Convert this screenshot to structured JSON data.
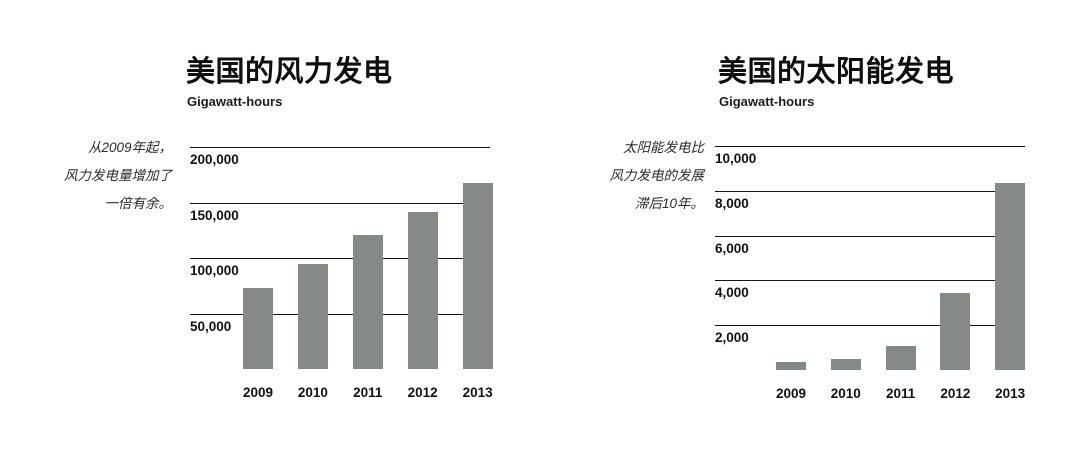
{
  "page": {
    "background_color": "#ffffff",
    "text_color": "#111111",
    "annotation_color": "#2a2a2a",
    "gridline_color": "#141414"
  },
  "chart_data": [
    {
      "type": "bar",
      "title": "美国的风力发电",
      "ylabel": "Gigawatt-hours",
      "xlabel": "",
      "categories": [
        "2009",
        "2010",
        "2011",
        "2012",
        "2013"
      ],
      "values": [
        73000,
        95000,
        121000,
        141500,
        168000
      ],
      "ylim": [
        0,
        200000
      ],
      "yticks": [
        200000,
        150000,
        100000,
        50000
      ],
      "ytick_labels": [
        "200,000",
        "150,000",
        "100,000",
        "50,000"
      ],
      "grid": true,
      "legend": false,
      "bar_color": "#868a87",
      "annotation": "从2009年起，风力发电量增加了一倍有余。",
      "annotation_lines": [
        "从2009年起，",
        "风力发电量增加了",
        "一倍有余。"
      ]
    },
    {
      "type": "bar",
      "title": "美国的太阳能发电",
      "ylabel": "Gigawatt-hours",
      "xlabel": "",
      "categories": [
        "2009",
        "2010",
        "2011",
        "2012",
        "2013"
      ],
      "values": [
        350,
        500,
        1050,
        3450,
        8350
      ],
      "ylim": [
        0,
        10000
      ],
      "yticks": [
        10000,
        8000,
        6000,
        4000,
        2000
      ],
      "ytick_labels": [
        "10,000",
        "8,000",
        "6,000",
        "4,000",
        "2,000"
      ],
      "grid": true,
      "legend": false,
      "bar_color": "#868a87",
      "annotation": "太阳能发电比风力发电的发展滞后10年。",
      "annotation_lines": [
        "太阳能发电比",
        "风力发电的发展",
        "滞后10年。"
      ]
    }
  ]
}
